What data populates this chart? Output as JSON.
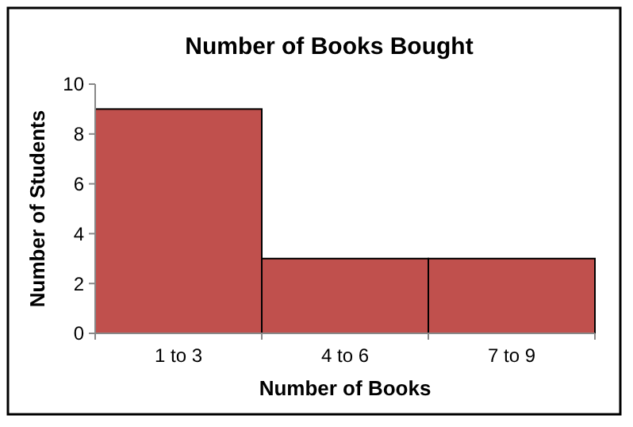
{
  "chart_data": {
    "type": "bar",
    "title": "Number of Books Bought",
    "xlabel": "Number of Books",
    "ylabel": "Number of Students",
    "categories": [
      "1 to 3",
      "4 to 6",
      "7 to 9"
    ],
    "values": [
      9,
      3,
      3
    ],
    "color": "#c0504d",
    "ylim": [
      0,
      10
    ],
    "yticks": [
      0,
      2,
      4,
      6,
      8,
      10
    ],
    "grid": false
  }
}
